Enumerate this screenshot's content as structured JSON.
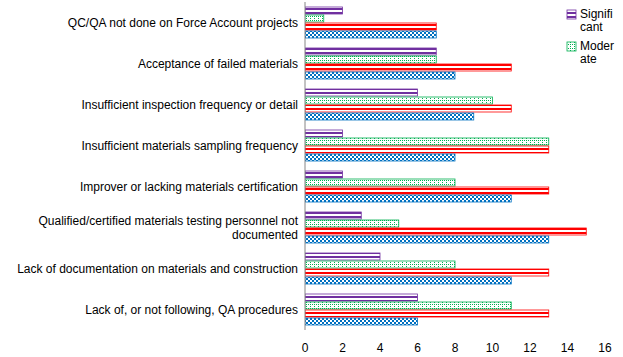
{
  "chart_data": {
    "type": "bar",
    "orientation": "horizontal",
    "categories": [
      "QC/QA not done on Force Account projects",
      "Acceptance of failed materials",
      "Insufficient inspection frequency or detail",
      "Insufficient  materials sampling frequency",
      "Improver or lacking materials certification",
      "Qualified/certified materials testing personnel not documented",
      "Lack of documentation on materials and construction",
      "Lack of, or not following, QA procedures"
    ],
    "series": [
      {
        "name": "Signifi cant",
        "color": "#7030a0",
        "values": [
          2,
          7,
          6,
          2,
          2,
          3,
          4,
          6
        ]
      },
      {
        "name": "Moder ate",
        "color": "#00b050",
        "values": [
          1,
          7,
          10,
          13,
          8,
          5,
          8,
          11
        ]
      },
      {
        "color": "#ff0000",
        "values": [
          7,
          11,
          11,
          13,
          13,
          15,
          13,
          13
        ]
      },
      {
        "color": "#0070c0",
        "values": [
          7,
          8,
          9,
          8,
          11,
          13,
          11,
          6
        ]
      }
    ],
    "xlim": [
      0,
      16
    ],
    "xticks": [
      0,
      2,
      4,
      6,
      8,
      10,
      12,
      14,
      16
    ],
    "grid": false,
    "legend": "top-right"
  }
}
